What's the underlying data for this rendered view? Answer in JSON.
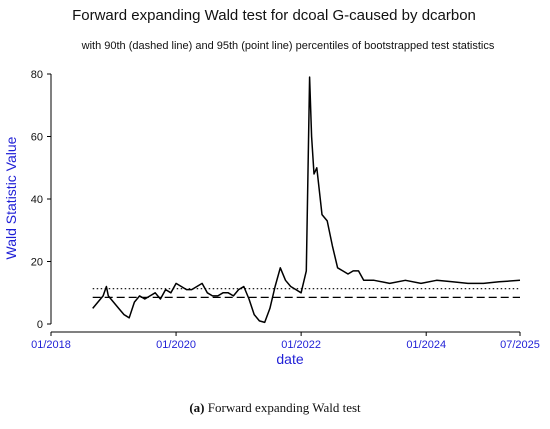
{
  "chart_data": {
    "type": "line",
    "title": "Forward expanding Wald test for dcoal G-caused by dcarbon",
    "subtitle": "with 90th (dashed line) and 95th (point line) percentiles of bootstrapped test statistics",
    "xlabel": "date",
    "ylabel": "Wald Statistic Value",
    "xlim": [
      "2018-01",
      "2025-07"
    ],
    "ylim": [
      0,
      80
    ],
    "x_ticks": [
      "01/2018",
      "01/2020",
      "01/2022",
      "01/2024",
      "07/2025"
    ],
    "x_tick_dates": [
      "2018-01",
      "2020-01",
      "2022-01",
      "2024-01",
      "2025-07"
    ],
    "y_ticks": [
      0,
      20,
      40,
      60,
      80
    ],
    "grid": false,
    "colors": {
      "axis_labels": "#1f1fd6",
      "series": "#000000"
    },
    "series": [
      {
        "style": "solid",
        "x": [
          "2018-09",
          "2018-10",
          "2018-11",
          "2018-11-20",
          "2018-12",
          "2019-01",
          "2019-02",
          "2019-03",
          "2019-04",
          "2019-05",
          "2019-06",
          "2019-07",
          "2019-08",
          "2019-09",
          "2019-10",
          "2019-11",
          "2019-12",
          "2020-01",
          "2020-02",
          "2020-03",
          "2020-04",
          "2020-05",
          "2020-06",
          "2020-07",
          "2020-08",
          "2020-09",
          "2020-10",
          "2020-11",
          "2020-12",
          "2021-01",
          "2021-02",
          "2021-03",
          "2021-04",
          "2021-05",
          "2021-06",
          "2021-07",
          "2021-08",
          "2021-09",
          "2021-10",
          "2021-11",
          "2021-12",
          "2022-01",
          "2022-02",
          "2022-02-20",
          "2022-03",
          "2022-03-15",
          "2022-04",
          "2022-05",
          "2022-06",
          "2022-07",
          "2022-08",
          "2022-09",
          "2022-10",
          "2022-11",
          "2022-12",
          "2023-01",
          "2023-03",
          "2023-06",
          "2023-09",
          "2023-12",
          "2024-03",
          "2024-06",
          "2024-09",
          "2024-12",
          "2025-03",
          "2025-07"
        ],
        "values": [
          5,
          7,
          9,
          12,
          9,
          7,
          5,
          3,
          2,
          7,
          9,
          8,
          9,
          10,
          8,
          11,
          10,
          13,
          12,
          11,
          11,
          12,
          13,
          10,
          9,
          9,
          10,
          10,
          9,
          11,
          12,
          8,
          3,
          1,
          0.5,
          5,
          12,
          18,
          14,
          12,
          11,
          10,
          17,
          79,
          60,
          48,
          50,
          35,
          33,
          25,
          18,
          17,
          16,
          17,
          17,
          14,
          14,
          13,
          14,
          13,
          14,
          13.5,
          13,
          13,
          13.5,
          14
        ]
      },
      {
        "name": "90th percentile",
        "style": "dashed",
        "x": [
          "2018-09",
          "2025-07"
        ],
        "values": [
          8.5,
          8.5
        ]
      },
      {
        "name": "95th percentile",
        "style": "dotted",
        "x": [
          "2018-09",
          "2025-07"
        ],
        "values": [
          11.3,
          11.3
        ]
      }
    ]
  },
  "caption": {
    "label": "(a)",
    "text": " Forward expanding Wald test"
  }
}
